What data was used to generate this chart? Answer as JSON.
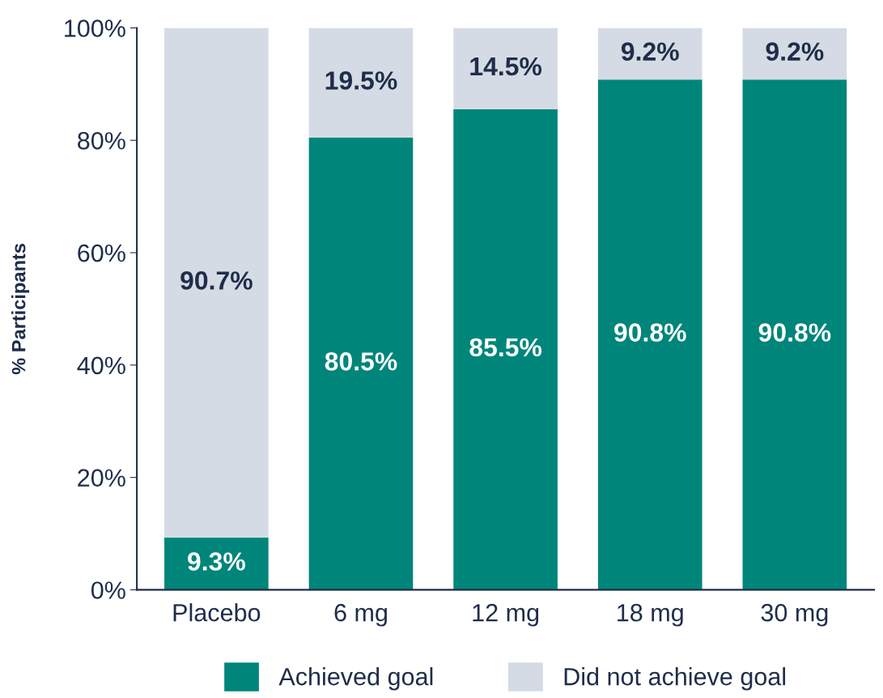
{
  "chart_data": {
    "type": "bar",
    "stacked": true,
    "ylabel": "% Participants",
    "categories": [
      "Placebo",
      "6 mg",
      "12 mg",
      "18 mg",
      "30 mg"
    ],
    "series": [
      {
        "name": "Achieved goal",
        "color": "#00857a",
        "values": [
          9.3,
          80.5,
          85.5,
          90.8,
          90.8
        ],
        "value_labels": [
          "9.3%",
          "80.5%",
          "85.5%",
          "90.8%",
          "90.8%"
        ]
      },
      {
        "name": "Did not achieve goal",
        "color": "#d5dbe4",
        "values": [
          90.7,
          19.5,
          14.5,
          9.2,
          9.2
        ],
        "value_labels": [
          "90.7%",
          "19.5%",
          "14.5%",
          "9.2%",
          "9.2%"
        ]
      }
    ],
    "ylim": [
      0,
      100
    ],
    "yticks": [
      {
        "value": 0,
        "label": "0%"
      },
      {
        "value": 20,
        "label": "20%"
      },
      {
        "value": 40,
        "label": "40%"
      },
      {
        "value": 60,
        "label": "60%"
      },
      {
        "value": 80,
        "label": "80%"
      },
      {
        "value": 100,
        "label": "100%"
      }
    ],
    "grid": false,
    "legend": "bottom"
  }
}
